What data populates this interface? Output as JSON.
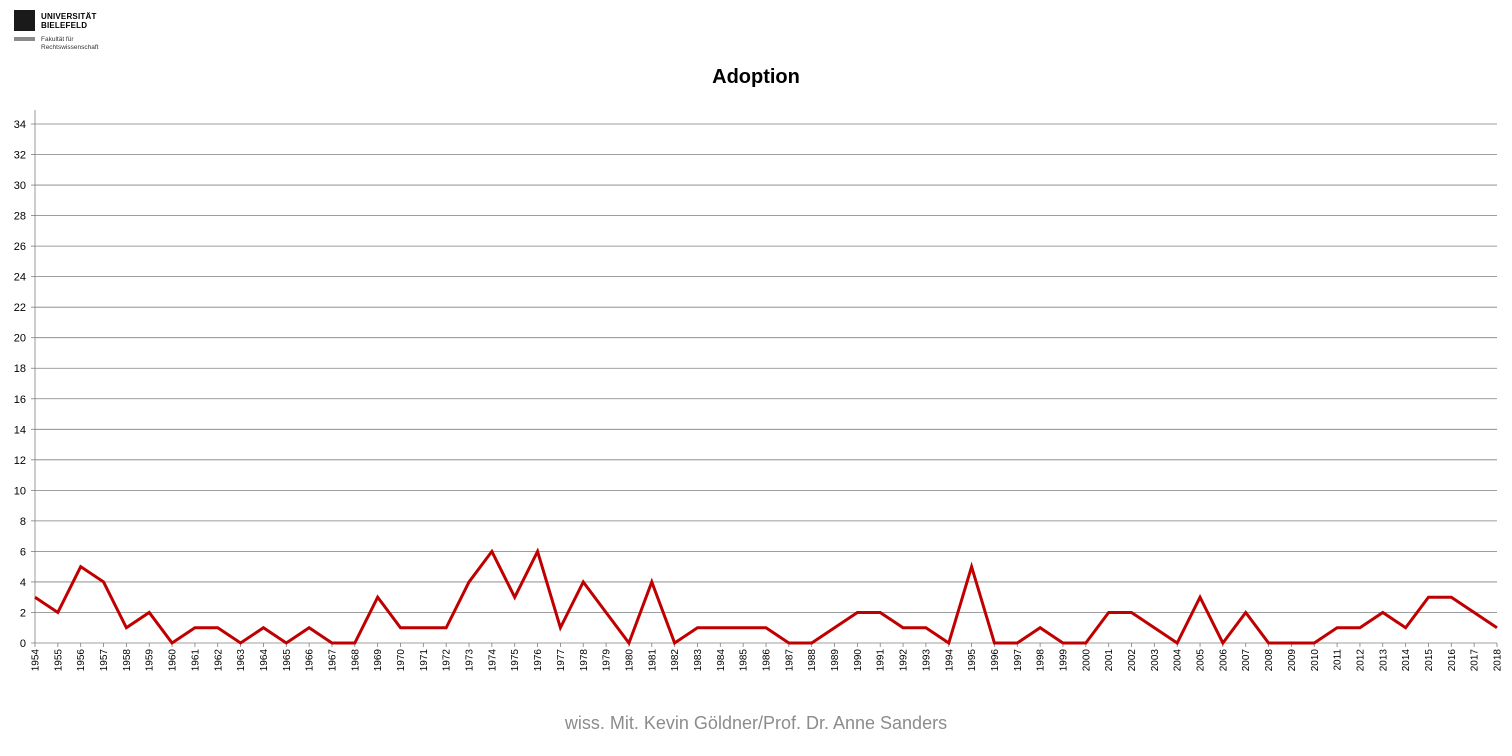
{
  "logo": {
    "line1": "UNIVERSITÄT",
    "line2": "BIELEFELD",
    "faculty1": "Fakultät für",
    "faculty2": "Rechtswissenschaft"
  },
  "footer": "wiss. Mit. Kevin Göldner/Prof.  Dr. Anne Sanders",
  "colors": {
    "line": "#c00000",
    "grid": "#7f7f7f",
    "axis": "#7f7f7f"
  },
  "chart_data": {
    "type": "line",
    "title": "Adoption",
    "xlabel": "",
    "ylabel": "",
    "ylim": [
      0,
      34
    ],
    "y_ticks": [
      0,
      2,
      4,
      6,
      8,
      10,
      12,
      14,
      16,
      18,
      20,
      22,
      24,
      26,
      28,
      30,
      32,
      34
    ],
    "grid": true,
    "categories": [
      "1954",
      "1955",
      "1956",
      "1957",
      "1958",
      "1959",
      "1960",
      "1961",
      "1962",
      "1963",
      "1964",
      "1965",
      "1966",
      "1967",
      "1968",
      "1969",
      "1970",
      "1971",
      "1972",
      "1973",
      "1974",
      "1975",
      "1976",
      "1977",
      "1978",
      "1979",
      "1980",
      "1981",
      "1982",
      "1983",
      "1984",
      "1985",
      "1986",
      "1987",
      "1988",
      "1989",
      "1990",
      "1991",
      "1992",
      "1993",
      "1994",
      "1995",
      "1996",
      "1997",
      "1998",
      "1999",
      "2000",
      "2001",
      "2002",
      "2003",
      "2004",
      "2005",
      "2006",
      "2007",
      "2008",
      "2009",
      "2010",
      "2011",
      "2012",
      "2013",
      "2014",
      "2015",
      "2016",
      "2017",
      "2018"
    ],
    "series": [
      {
        "values": [
          3,
          2,
          5,
          4,
          1,
          2,
          0,
          1,
          1,
          0,
          1,
          0,
          1,
          0,
          0,
          3,
          1,
          1,
          1,
          4,
          6,
          3,
          6,
          1,
          4,
          2,
          0,
          4,
          0,
          1,
          1,
          1,
          1,
          0,
          0,
          1,
          2,
          2,
          1,
          1,
          0,
          5,
          0,
          0,
          1,
          0,
          0,
          2,
          2,
          1,
          0,
          3,
          0,
          2,
          0,
          0,
          0,
          1,
          1,
          2,
          1,
          3,
          3,
          2,
          1
        ]
      }
    ]
  }
}
